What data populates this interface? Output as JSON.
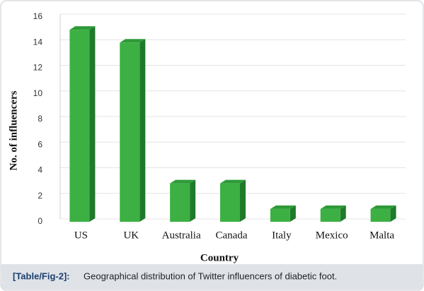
{
  "chart_data": {
    "type": "bar",
    "categories": [
      "US",
      "UK",
      "Australia",
      "Canada",
      "Italy",
      "Mexico",
      "Malta"
    ],
    "values": [
      15,
      14,
      3,
      3,
      1,
      1,
      1
    ],
    "color": "#3cb043",
    "ylim": [
      0,
      16
    ],
    "yticks": [
      0,
      2,
      4,
      6,
      8,
      10,
      12,
      14,
      16
    ],
    "grid": true,
    "ylabel": "No. of influencers",
    "xlabel": "Country"
  },
  "caption": {
    "label": "[Table/Fig-2]:",
    "text": "Geographical distribution of Twitter influencers of diabetic foot."
  }
}
